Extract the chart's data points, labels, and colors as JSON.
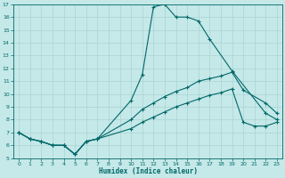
{
  "xlabel": "Humidex (Indice chaleur)",
  "bg_color": "#c5e8e8",
  "line_color": "#006868",
  "grid_color": "#aad4d4",
  "xlim": [
    -0.5,
    23.5
  ],
  "ylim": [
    5,
    17
  ],
  "xticks": [
    0,
    1,
    2,
    3,
    4,
    5,
    6,
    7,
    8,
    9,
    10,
    11,
    12,
    13,
    14,
    15,
    16,
    17,
    18,
    19,
    20,
    21,
    22,
    23
  ],
  "yticks": [
    5,
    6,
    7,
    8,
    9,
    10,
    11,
    12,
    13,
    14,
    15,
    16,
    17
  ],
  "line1_x": [
    0,
    1,
    2,
    3,
    4,
    5,
    6,
    7,
    10,
    11,
    12,
    13,
    14,
    15,
    16,
    17,
    19,
    22,
    23
  ],
  "line1_y": [
    7,
    6.5,
    6.3,
    6.0,
    6.0,
    5.3,
    6.3,
    6.5,
    9.5,
    11.5,
    16.8,
    17.0,
    16.0,
    16.0,
    15.7,
    14.3,
    11.8,
    8.5,
    8.0
  ],
  "line2_x": [
    0,
    1,
    2,
    3,
    4,
    5,
    6,
    7,
    10,
    11,
    12,
    13,
    14,
    15,
    16,
    17,
    18,
    19,
    20,
    22,
    23
  ],
  "line2_y": [
    7,
    6.5,
    6.3,
    6.0,
    6.0,
    5.3,
    6.3,
    6.5,
    8.0,
    8.8,
    9.3,
    9.8,
    10.2,
    10.5,
    11.0,
    11.2,
    11.4,
    11.7,
    10.3,
    9.3,
    8.5
  ],
  "line3_x": [
    0,
    1,
    2,
    3,
    4,
    5,
    6,
    7,
    10,
    11,
    12,
    13,
    14,
    15,
    16,
    17,
    18,
    19,
    20,
    21,
    22,
    23
  ],
  "line3_y": [
    7,
    6.5,
    6.3,
    6.0,
    6.0,
    5.3,
    6.3,
    6.5,
    7.3,
    7.8,
    8.2,
    8.6,
    9.0,
    9.3,
    9.6,
    9.9,
    10.1,
    10.4,
    7.8,
    7.5,
    7.5,
    7.8
  ]
}
